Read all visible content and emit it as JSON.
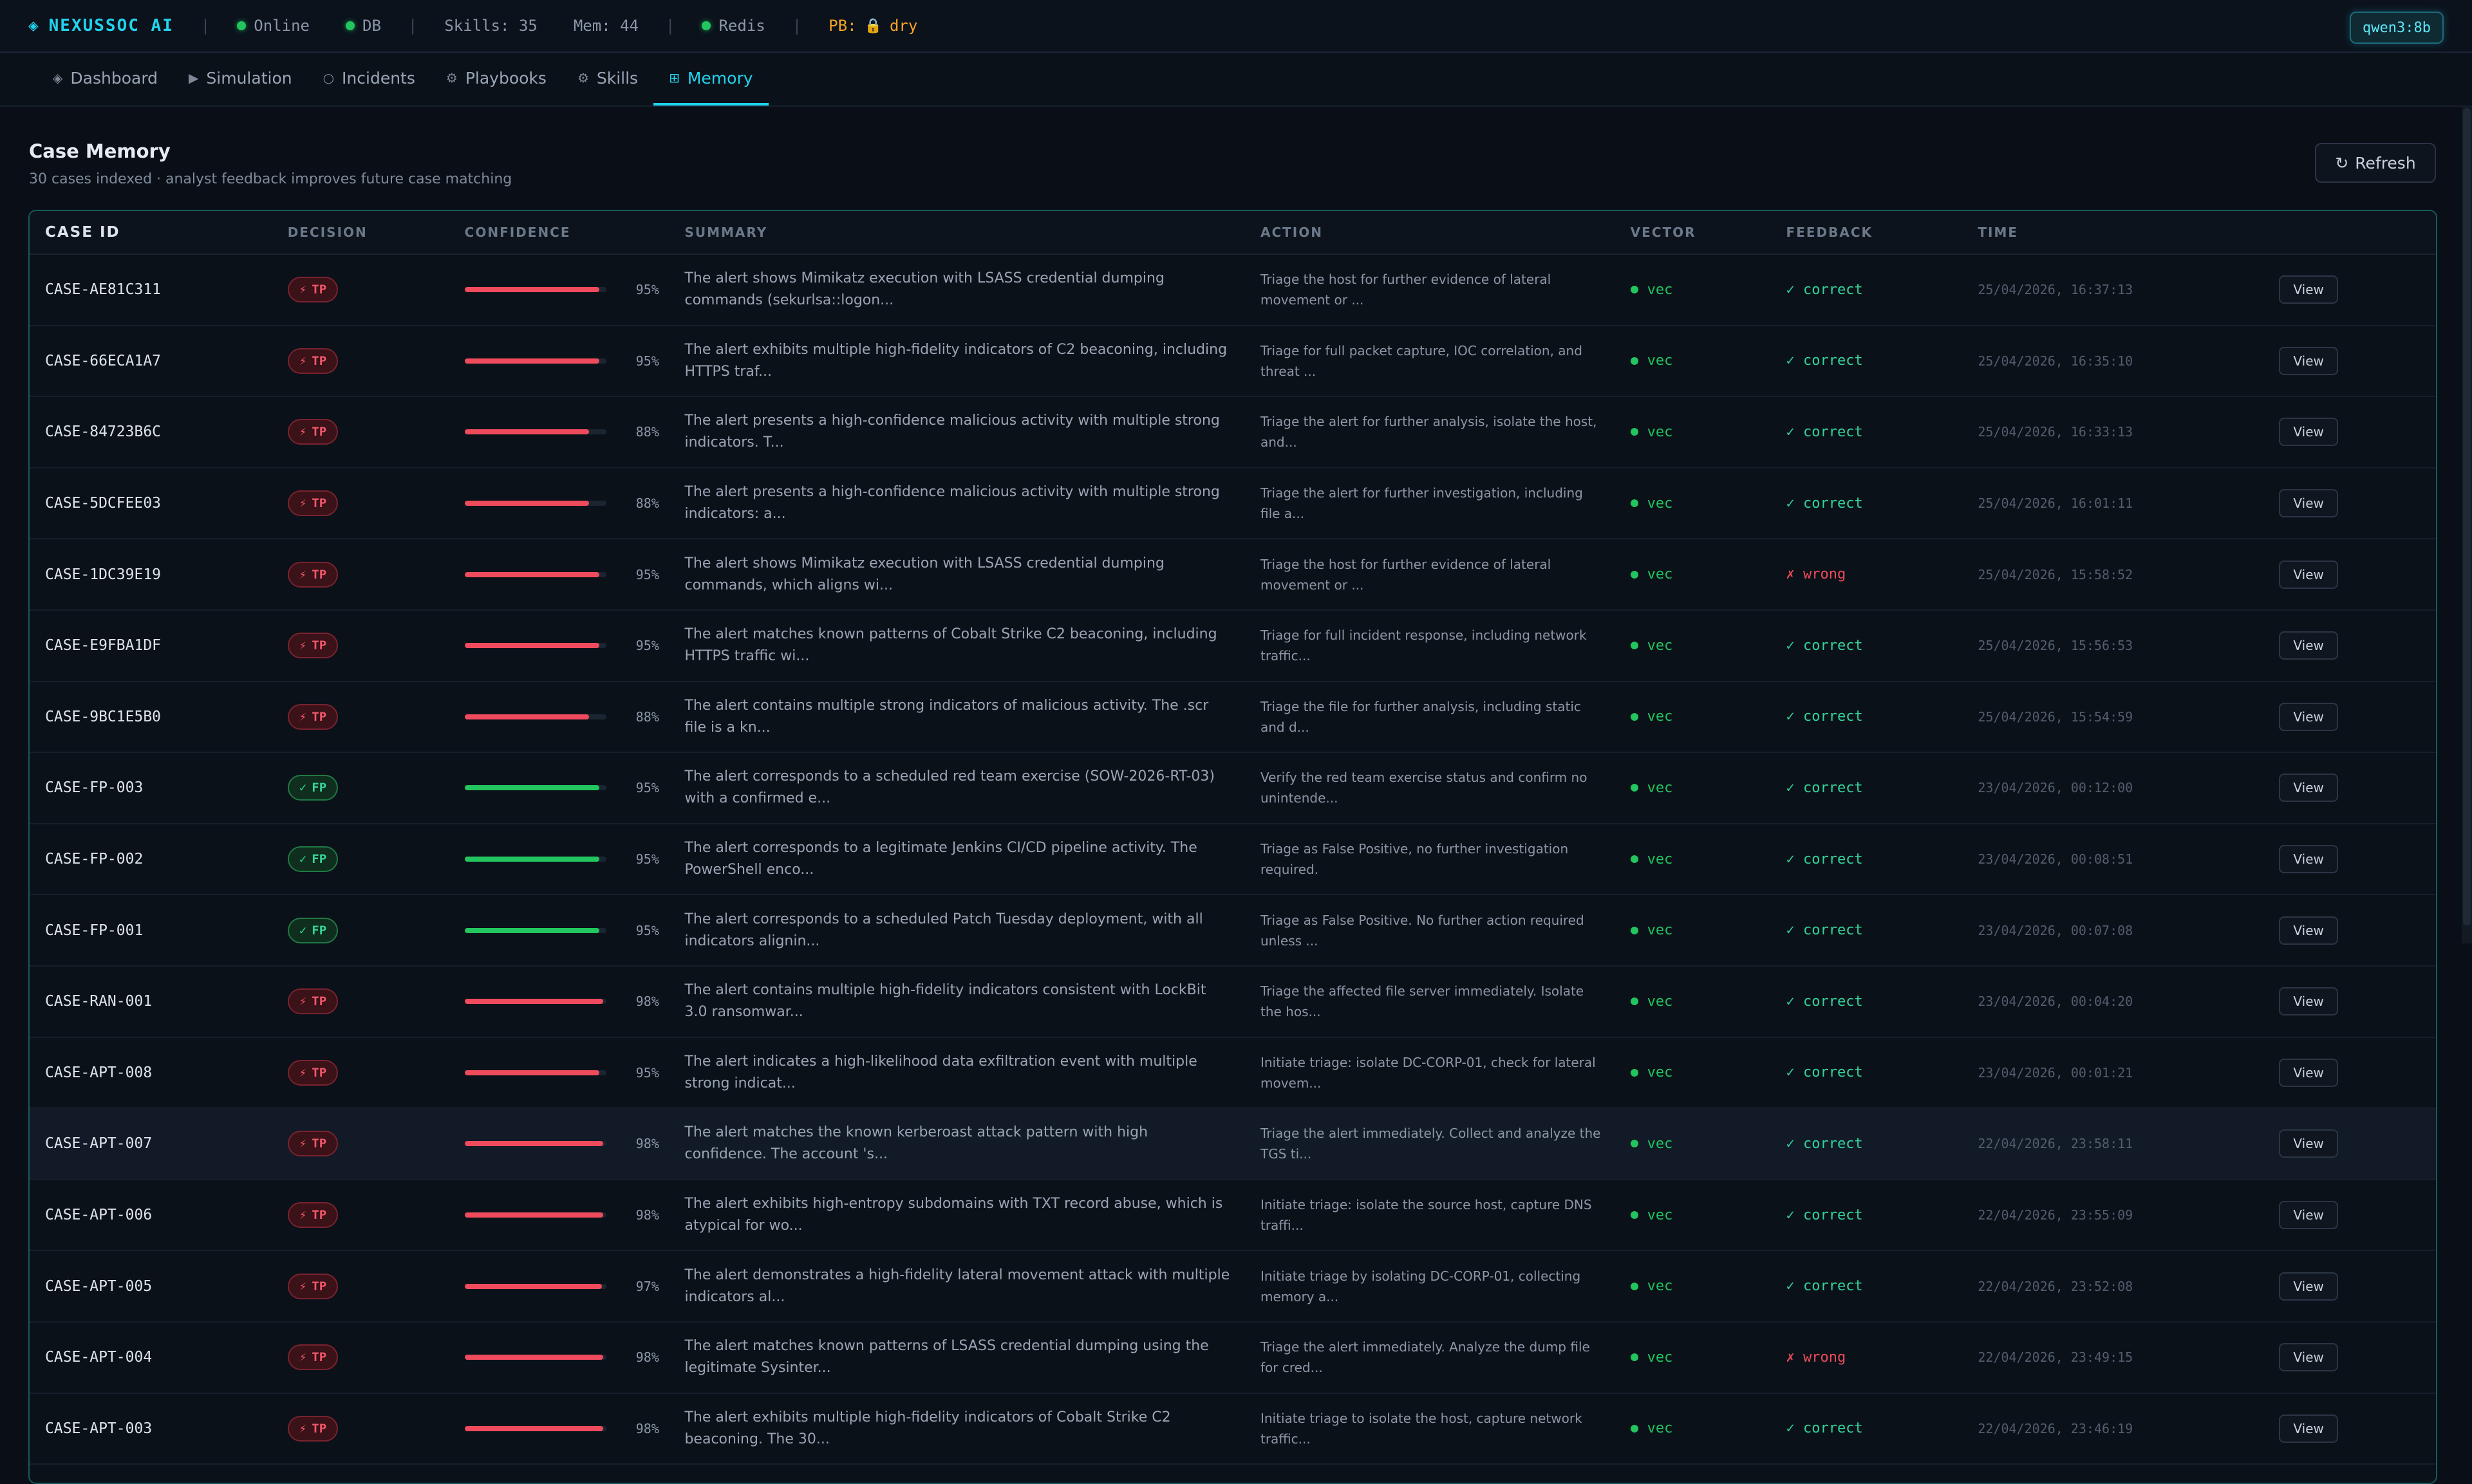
{
  "topbar": {
    "brand": "NEXUSSOC AI",
    "brand_icon": "◈",
    "status_online": "Online",
    "status_db": "DB",
    "skills": "Skills: 35",
    "mem": "Mem: 44",
    "status_redis": "Redis",
    "pb_label": "PB:",
    "pb_value": "dry",
    "model": "qwen3:8b"
  },
  "tabs": [
    {
      "label": "Dashboard",
      "icon": "◈"
    },
    {
      "label": "Simulation",
      "icon": "▶"
    },
    {
      "label": "Incidents",
      "icon": "○"
    },
    {
      "label": "Playbooks",
      "icon": "⚙"
    },
    {
      "label": "Skills",
      "icon": "⚙"
    },
    {
      "label": "Memory",
      "icon": "⊞"
    }
  ],
  "header": {
    "title": "Case Memory",
    "subtitle": "30 cases indexed · analyst feedback improves future case matching",
    "refresh_label": "Refresh",
    "refresh_icon": "↻"
  },
  "columns": {
    "case_id": "CASE ID",
    "decision": "DECISION",
    "confidence": "CONFIDENCE",
    "summary": "SUMMARY",
    "action": "ACTION",
    "vector": "VECTOR",
    "feedback": "FEEDBACK",
    "time": "TIME"
  },
  "rows": [
    {
      "id": "CASE-AE81C311",
      "decision": "TP",
      "conf": 95,
      "conf_label": "95%",
      "summary": "The alert shows Mimikatz execution with LSASS credential dumping commands (sekurlsa::logon...",
      "action": "Triage the host for further evidence of lateral movement or ...",
      "vector": "vec",
      "feedback": "correct",
      "time": "25/04/2026, 16:37:13",
      "view": "View"
    },
    {
      "id": "CASE-66ECA1A7",
      "decision": "TP",
      "conf": 95,
      "conf_label": "95%",
      "summary": "The alert exhibits multiple high-fidelity indicators of C2 beaconing, including HTTPS traf...",
      "action": "Triage for full packet capture, IOC correlation, and threat ...",
      "vector": "vec",
      "feedback": "correct",
      "time": "25/04/2026, 16:35:10",
      "view": "View"
    },
    {
      "id": "CASE-84723B6C",
      "decision": "TP",
      "conf": 88,
      "conf_label": "88%",
      "summary": "The alert presents a high-confidence malicious activity with multiple strong indicators. T...",
      "action": "Triage the alert for further analysis, isolate the host, and...",
      "vector": "vec",
      "feedback": "correct",
      "time": "25/04/2026, 16:33:13",
      "view": "View"
    },
    {
      "id": "CASE-5DCFEE03",
      "decision": "TP",
      "conf": 88,
      "conf_label": "88%",
      "summary": "The alert presents a high-confidence malicious activity with multiple strong indicators: a...",
      "action": "Triage the alert for further investigation, including file a...",
      "vector": "vec",
      "feedback": "correct",
      "time": "25/04/2026, 16:01:11",
      "view": "View"
    },
    {
      "id": "CASE-1DC39E19",
      "decision": "TP",
      "conf": 95,
      "conf_label": "95%",
      "summary": "The alert shows Mimikatz execution with LSASS credential dumping commands, which aligns wi...",
      "action": "Triage the host for further evidence of lateral movement or ...",
      "vector": "vec",
      "feedback": "wrong",
      "time": "25/04/2026, 15:58:52",
      "view": "View"
    },
    {
      "id": "CASE-E9FBA1DF",
      "decision": "TP",
      "conf": 95,
      "conf_label": "95%",
      "summary": "The alert matches known patterns of Cobalt Strike C2 beaconing, including HTTPS traffic wi...",
      "action": "Triage for full incident response, including network traffic...",
      "vector": "vec",
      "feedback": "correct",
      "time": "25/04/2026, 15:56:53",
      "view": "View"
    },
    {
      "id": "CASE-9BC1E5B0",
      "decision": "TP",
      "conf": 88,
      "conf_label": "88%",
      "summary": "The alert contains multiple strong indicators of malicious activity. The .scr file is a kn...",
      "action": "Triage the file for further analysis, including static and d...",
      "vector": "vec",
      "feedback": "correct",
      "time": "25/04/2026, 15:54:59",
      "view": "View"
    },
    {
      "id": "CASE-FP-003",
      "decision": "FP",
      "conf": 95,
      "conf_label": "95%",
      "summary": "The alert corresponds to a scheduled red team exercise (SOW-2026-RT-03) with a confirmed e...",
      "action": "Verify the red team exercise status and confirm no unintende...",
      "vector": "vec",
      "feedback": "correct",
      "time": "23/04/2026, 00:12:00",
      "view": "View"
    },
    {
      "id": "CASE-FP-002",
      "decision": "FP",
      "conf": 95,
      "conf_label": "95%",
      "summary": "The alert corresponds to a legitimate Jenkins CI/CD pipeline activity. The PowerShell enco...",
      "action": "Triage as False Positive, no further investigation required.",
      "vector": "vec",
      "feedback": "correct",
      "time": "23/04/2026, 00:08:51",
      "view": "View"
    },
    {
      "id": "CASE-FP-001",
      "decision": "FP",
      "conf": 95,
      "conf_label": "95%",
      "summary": "The alert corresponds to a scheduled Patch Tuesday deployment, with all indicators alignin...",
      "action": "Triage as False Positive. No further action required unless ...",
      "vector": "vec",
      "feedback": "correct",
      "time": "23/04/2026, 00:07:08",
      "view": "View"
    },
    {
      "id": "CASE-RAN-001",
      "decision": "TP",
      "conf": 98,
      "conf_label": "98%",
      "summary": "The alert contains multiple high-fidelity indicators consistent with LockBit 3.0 ransomwar...",
      "action": "Triage the affected file server immediately. Isolate the hos...",
      "vector": "vec",
      "feedback": "correct",
      "time": "23/04/2026, 00:04:20",
      "view": "View"
    },
    {
      "id": "CASE-APT-008",
      "decision": "TP",
      "conf": 95,
      "conf_label": "95%",
      "summary": "The alert indicates a high-likelihood data exfiltration event with multiple strong indicat...",
      "action": "Initiate triage: isolate DC-CORP-01, check for lateral movem...",
      "vector": "vec",
      "feedback": "correct",
      "time": "23/04/2026, 00:01:21",
      "view": "View"
    },
    {
      "id": "CASE-APT-007",
      "decision": "TP",
      "conf": 98,
      "conf_label": "98%",
      "summary": "The alert matches the known kerberoast attack pattern with high confidence. The account 's...",
      "action": "Triage the alert immediately. Collect and analyze the TGS ti...",
      "vector": "vec",
      "feedback": "correct",
      "time": "22/04/2026, 23:58:11",
      "view": "View",
      "highlight": true
    },
    {
      "id": "CASE-APT-006",
      "decision": "TP",
      "conf": 98,
      "conf_label": "98%",
      "summary": "The alert exhibits high-entropy subdomains with TXT record abuse, which is atypical for wo...",
      "action": "Initiate triage: isolate the source host, capture DNS traffi...",
      "vector": "vec",
      "feedback": "correct",
      "time": "22/04/2026, 23:55:09",
      "view": "View"
    },
    {
      "id": "CASE-APT-005",
      "decision": "TP",
      "conf": 97,
      "conf_label": "97%",
      "summary": "The alert demonstrates a high-fidelity lateral movement attack with multiple indicators al...",
      "action": "Initiate triage by isolating DC-CORP-01, collecting memory a...",
      "vector": "vec",
      "feedback": "correct",
      "time": "22/04/2026, 23:52:08",
      "view": "View"
    },
    {
      "id": "CASE-APT-004",
      "decision": "TP",
      "conf": 98,
      "conf_label": "98%",
      "summary": "The alert matches known patterns of LSASS credential dumping using the legitimate Sysinter...",
      "action": "Triage the alert immediately. Analyze the dump file for cred...",
      "vector": "vec",
      "feedback": "wrong",
      "time": "22/04/2026, 23:49:15",
      "view": "View"
    },
    {
      "id": "CASE-APT-003",
      "decision": "TP",
      "conf": 98,
      "conf_label": "98%",
      "summary": "The alert exhibits multiple high-fidelity indicators of Cobalt Strike C2 beaconing. The 30...",
      "action": "Initiate triage to isolate the host, capture network traffic...",
      "vector": "vec",
      "feedback": "correct",
      "time": "22/04/2026, 23:46:19",
      "view": "View"
    }
  ],
  "colors": {
    "accent": "#22d3ee",
    "tp": "#ef4b5c",
    "fp": "#22c55e",
    "correct": "#34d399",
    "wrong": "#ef4b5c"
  },
  "icons": {
    "tp": "⚡",
    "fp": "✓",
    "correct": "✓",
    "wrong": "✗",
    "lock": "🔒"
  }
}
